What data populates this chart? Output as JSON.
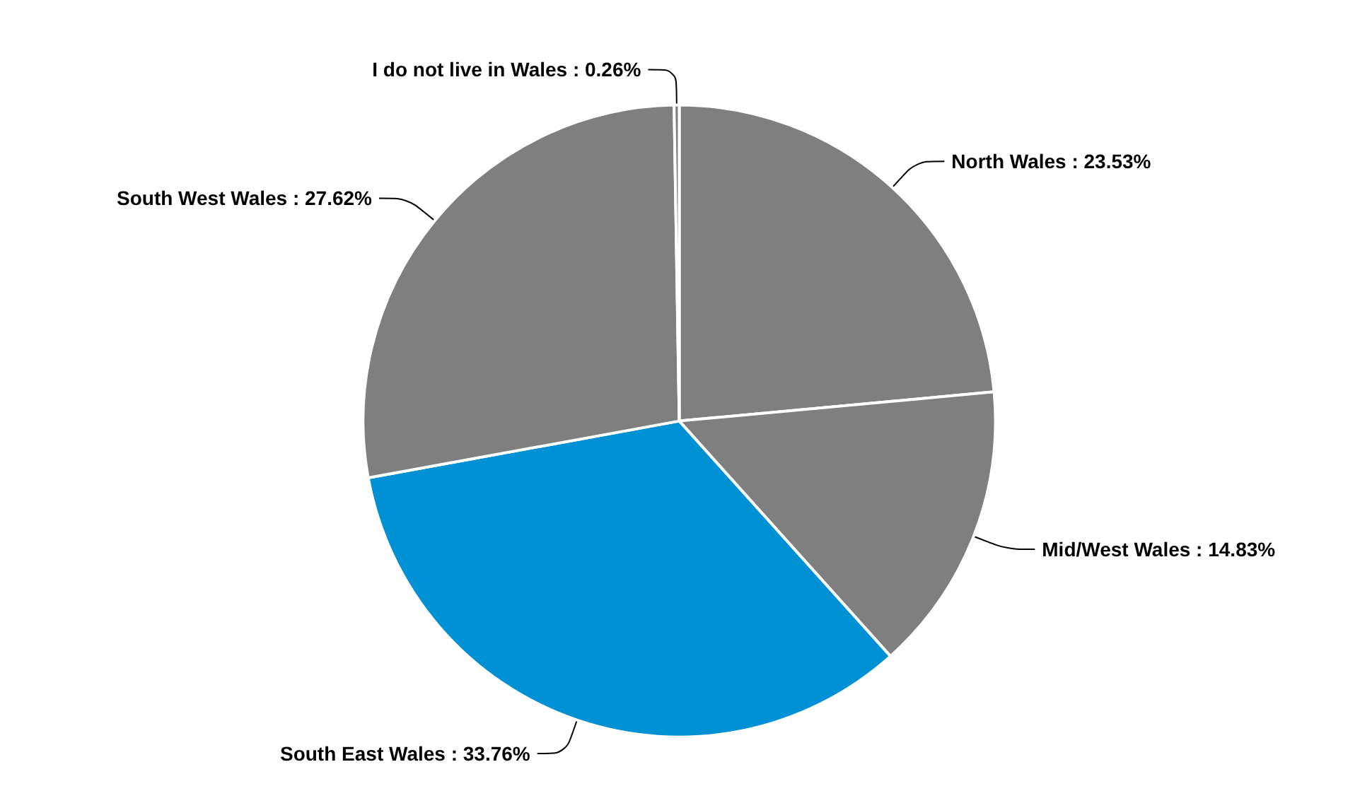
{
  "chart_data": {
    "type": "pie",
    "categories": [
      "North Wales",
      "Mid/West Wales",
      "South East Wales",
      "South West Wales",
      "I do not live in Wales"
    ],
    "values": [
      23.53,
      14.83,
      33.76,
      27.62,
      0.26
    ],
    "colors": [
      "#7f7f7f",
      "#7f7f7f",
      "#0090d4",
      "#7f7f7f",
      "#7f7f7f"
    ],
    "value_labels": [
      ": 23.53%",
      ": 14.83%",
      ": 33.76%",
      ": 27.62%",
      ": 0.26%"
    ],
    "legend": false
  }
}
